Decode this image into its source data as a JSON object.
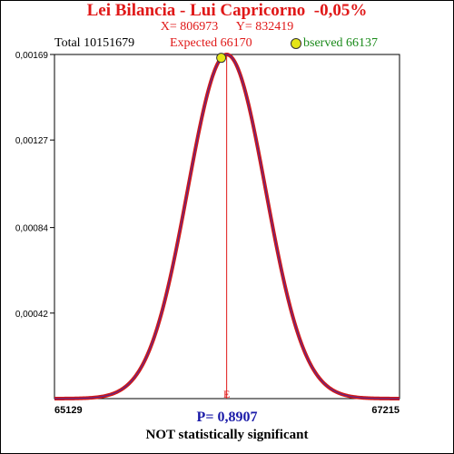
{
  "header": {
    "title": "Lei Bilancia - Lui Capricorno  -0,05%",
    "x_label": "X= 806973",
    "y_label": "Y= 832419"
  },
  "stats": {
    "total": "Total  10151679",
    "expected": "Expected  66170",
    "observed": "bserved  66137"
  },
  "footer": {
    "p_value": "P= 0,8907",
    "verdict": "NOT statistically significant"
  },
  "colors": {
    "curve": "#d01818",
    "curve_inner": "#4a2aa0",
    "expected_line": "#e01818",
    "marker": "#e4e418",
    "title": "#e01818",
    "observed": "#1a8a1a",
    "p_value": "#1a1aa8"
  },
  "chart_data": {
    "type": "line",
    "distribution": "normal",
    "xlim": [
      65129,
      67215
    ],
    "ylim": [
      0,
      0.00169
    ],
    "mean": 66170,
    "std_dev": 236,
    "peak_density": 0.00169,
    "x_tick_labels": [
      "65129",
      "67215"
    ],
    "y_tick_labels": [
      "0,00042",
      "0,00084",
      "0,00127",
      "0,00169"
    ],
    "y_ticks": [
      0.00042,
      0.00084,
      0.00127,
      0.00169
    ],
    "expected": 66170,
    "expected_marker_label": "E",
    "observed": 66137
  }
}
